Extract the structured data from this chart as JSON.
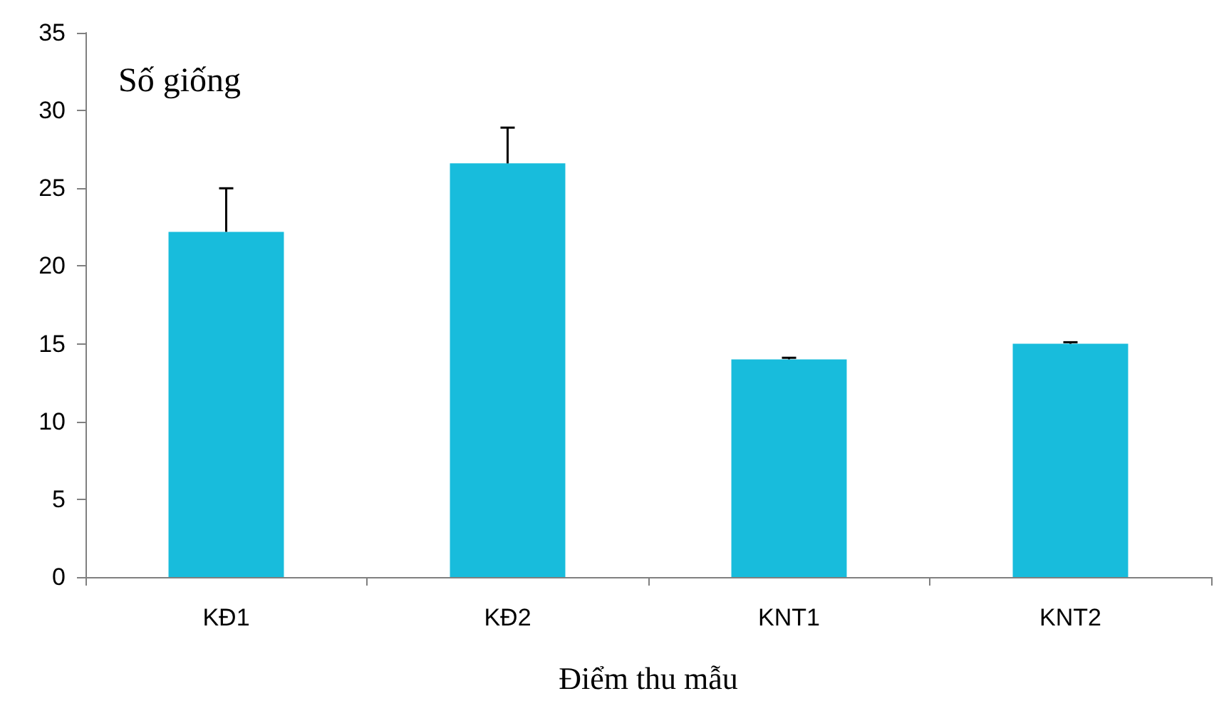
{
  "chart_data": {
    "type": "bar",
    "ylabel": "Số giống",
    "xlabel": "Điểm thu mẫu",
    "categories": [
      "KĐ1",
      "KĐ2",
      "KNT1",
      "KNT2"
    ],
    "values": [
      22.2,
      26.6,
      14.0,
      15.0
    ],
    "errors": [
      [
        22.2,
        25.0
      ],
      [
        26.6,
        28.9
      ],
      [
        14.0,
        14.1
      ],
      [
        15.0,
        15.1
      ]
    ],
    "color": "#18bcdc",
    "ylim": [
      0,
      35
    ],
    "yticks": [
      0,
      5,
      10,
      15,
      20,
      25,
      30,
      35
    ]
  }
}
